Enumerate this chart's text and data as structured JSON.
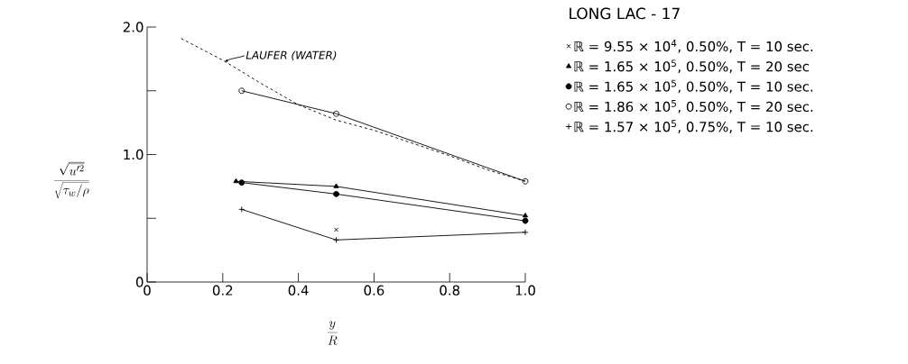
{
  "chart_data": {
    "type": "line",
    "legend_title": "LONG LAC - 17",
    "xlabel": "\\frac{y}{R}",
    "ylabel": "\\frac{\\sqrt{\\overline{u'^{2}}}}{\\sqrt{\\tau_w/\\rho}}",
    "xlim": [
      0,
      1.0
    ],
    "ylim": [
      0,
      2.0
    ],
    "xticks": [
      0,
      0.2,
      0.4,
      0.6,
      0.8,
      {
        "value": 1.0,
        "label": "1.0"
      }
    ],
    "yticks": [
      0,
      {
        "value": 0.5,
        "label": null
      },
      {
        "value": 1.0,
        "label": "1.0"
      },
      {
        "value": 1.5,
        "label": null
      },
      {
        "value": 2.0,
        "label": "2.0"
      }
    ],
    "grid": false,
    "legend": "right",
    "annotations": [
      {
        "text": "LAUFER (WATER)",
        "x": 0.2,
        "y": 1.74
      }
    ],
    "series": [
      {
        "name": "ℝ = 9.55 × 10$^{4}$, 0.50%, T = 10 sec.",
        "color": "#000000",
        "marker": "cross",
        "line_style": "none",
        "x": [
          0.5
        ],
        "values": [
          0.41
        ]
      },
      {
        "name": "ℝ = 1.65 × 10$^{5}$, 0.50%, T = 20 sec",
        "color": "#000000",
        "marker": "triangle",
        "line_style": "solid",
        "x": [
          0.235,
          0.5,
          1.0
        ],
        "values": [
          0.79,
          0.75,
          0.52
        ]
      },
      {
        "name": "ℝ = 1.65 × 10$^{5}$, 0.50%, T = 10 sec.",
        "color": "#000000",
        "marker": "circle",
        "line_style": "solid",
        "x": [
          0.25,
          0.5,
          1.0
        ],
        "values": [
          0.78,
          0.69,
          0.48
        ]
      },
      {
        "name": "ℝ = 1.86 × 10$^{5}$, 0.50%, T = 20 sec.",
        "color": "#000000",
        "marker": "open circle",
        "line_style": "solid",
        "x": [
          0.25,
          0.5,
          1.0
        ],
        "values": [
          1.5,
          1.32,
          0.79
        ]
      },
      {
        "name": "ℝ = 1.57 × 10$^{5}$, 0.75%, T = 10 sec.",
        "color": "#000000",
        "marker": "plus",
        "line_style": "solid",
        "x": [
          0.25,
          0.5,
          1.0
        ],
        "values": [
          0.57,
          0.33,
          0.39
        ]
      },
      {
        "color": "#000000",
        "marker": "none",
        "line_style": "dashed",
        "x": [
          0.09,
          0.2,
          0.3,
          0.4,
          0.5,
          0.6,
          0.7,
          0.8,
          0.9,
          1.0
        ],
        "values": [
          1.91,
          1.74,
          1.56,
          1.39,
          1.27,
          1.19,
          1.09,
          0.99,
          0.88,
          0.79
        ]
      }
    ]
  }
}
